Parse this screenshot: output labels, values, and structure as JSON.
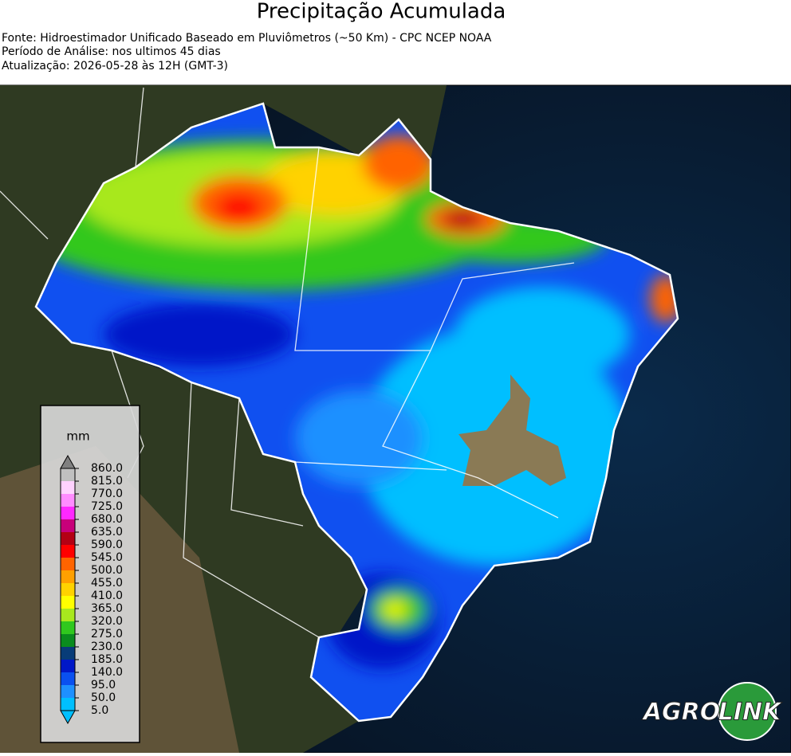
{
  "header": {
    "title": "Precipitação Acumulada",
    "lines": [
      "Fonte: Hidroestimador Unificado Baseado em Pluviômetros (~50 Km) - CPC NCEP NOAA",
      "Período de Análise: nos ultimos 45 dias",
      "Atualização: 2026-05-28 às 12H (GMT-3)"
    ]
  },
  "legend": {
    "unit": "mm",
    "ticks": [
      {
        "value": 5,
        "label": "5.0"
      },
      {
        "value": 50,
        "label": "50.0"
      },
      {
        "value": 95,
        "label": "95.0"
      },
      {
        "value": 140,
        "label": "140.0"
      },
      {
        "value": 185,
        "label": "185.0"
      },
      {
        "value": 230,
        "label": "230.0"
      },
      {
        "value": 275,
        "label": "275.0"
      },
      {
        "value": 320,
        "label": "320.0"
      },
      {
        "value": 365,
        "label": "365.0"
      },
      {
        "value": 410,
        "label": "410.0"
      },
      {
        "value": 455,
        "label": "455.0"
      },
      {
        "value": 500,
        "label": "500.0"
      },
      {
        "value": 545,
        "label": "545.0"
      },
      {
        "value": 590,
        "label": "590.0"
      },
      {
        "value": 635,
        "label": "635.0"
      },
      {
        "value": 680,
        "label": "680.0"
      },
      {
        "value": 725,
        "label": "725.0"
      },
      {
        "value": 770,
        "label": "770.0"
      },
      {
        "value": 815,
        "label": "815.0"
      },
      {
        "value": 860,
        "label": "860.0"
      }
    ],
    "colors": [
      "#00bfff",
      "#1e90ff",
      "#0a50f0",
      "#0018c8",
      "#083c78",
      "#0a8c1e",
      "#30c81e",
      "#a8e81e",
      "#ffff00",
      "#ffd200",
      "#ffa000",
      "#ff6400",
      "#ff0000",
      "#b40014",
      "#c8007a",
      "#ff28ff",
      "#ff8cff",
      "#ffd2ff",
      "#c0c0c0"
    ],
    "under_color": "#00bfff",
    "over_color": "#808080"
  },
  "logo": {
    "left": "AGRO",
    "right": "LINK"
  }
}
